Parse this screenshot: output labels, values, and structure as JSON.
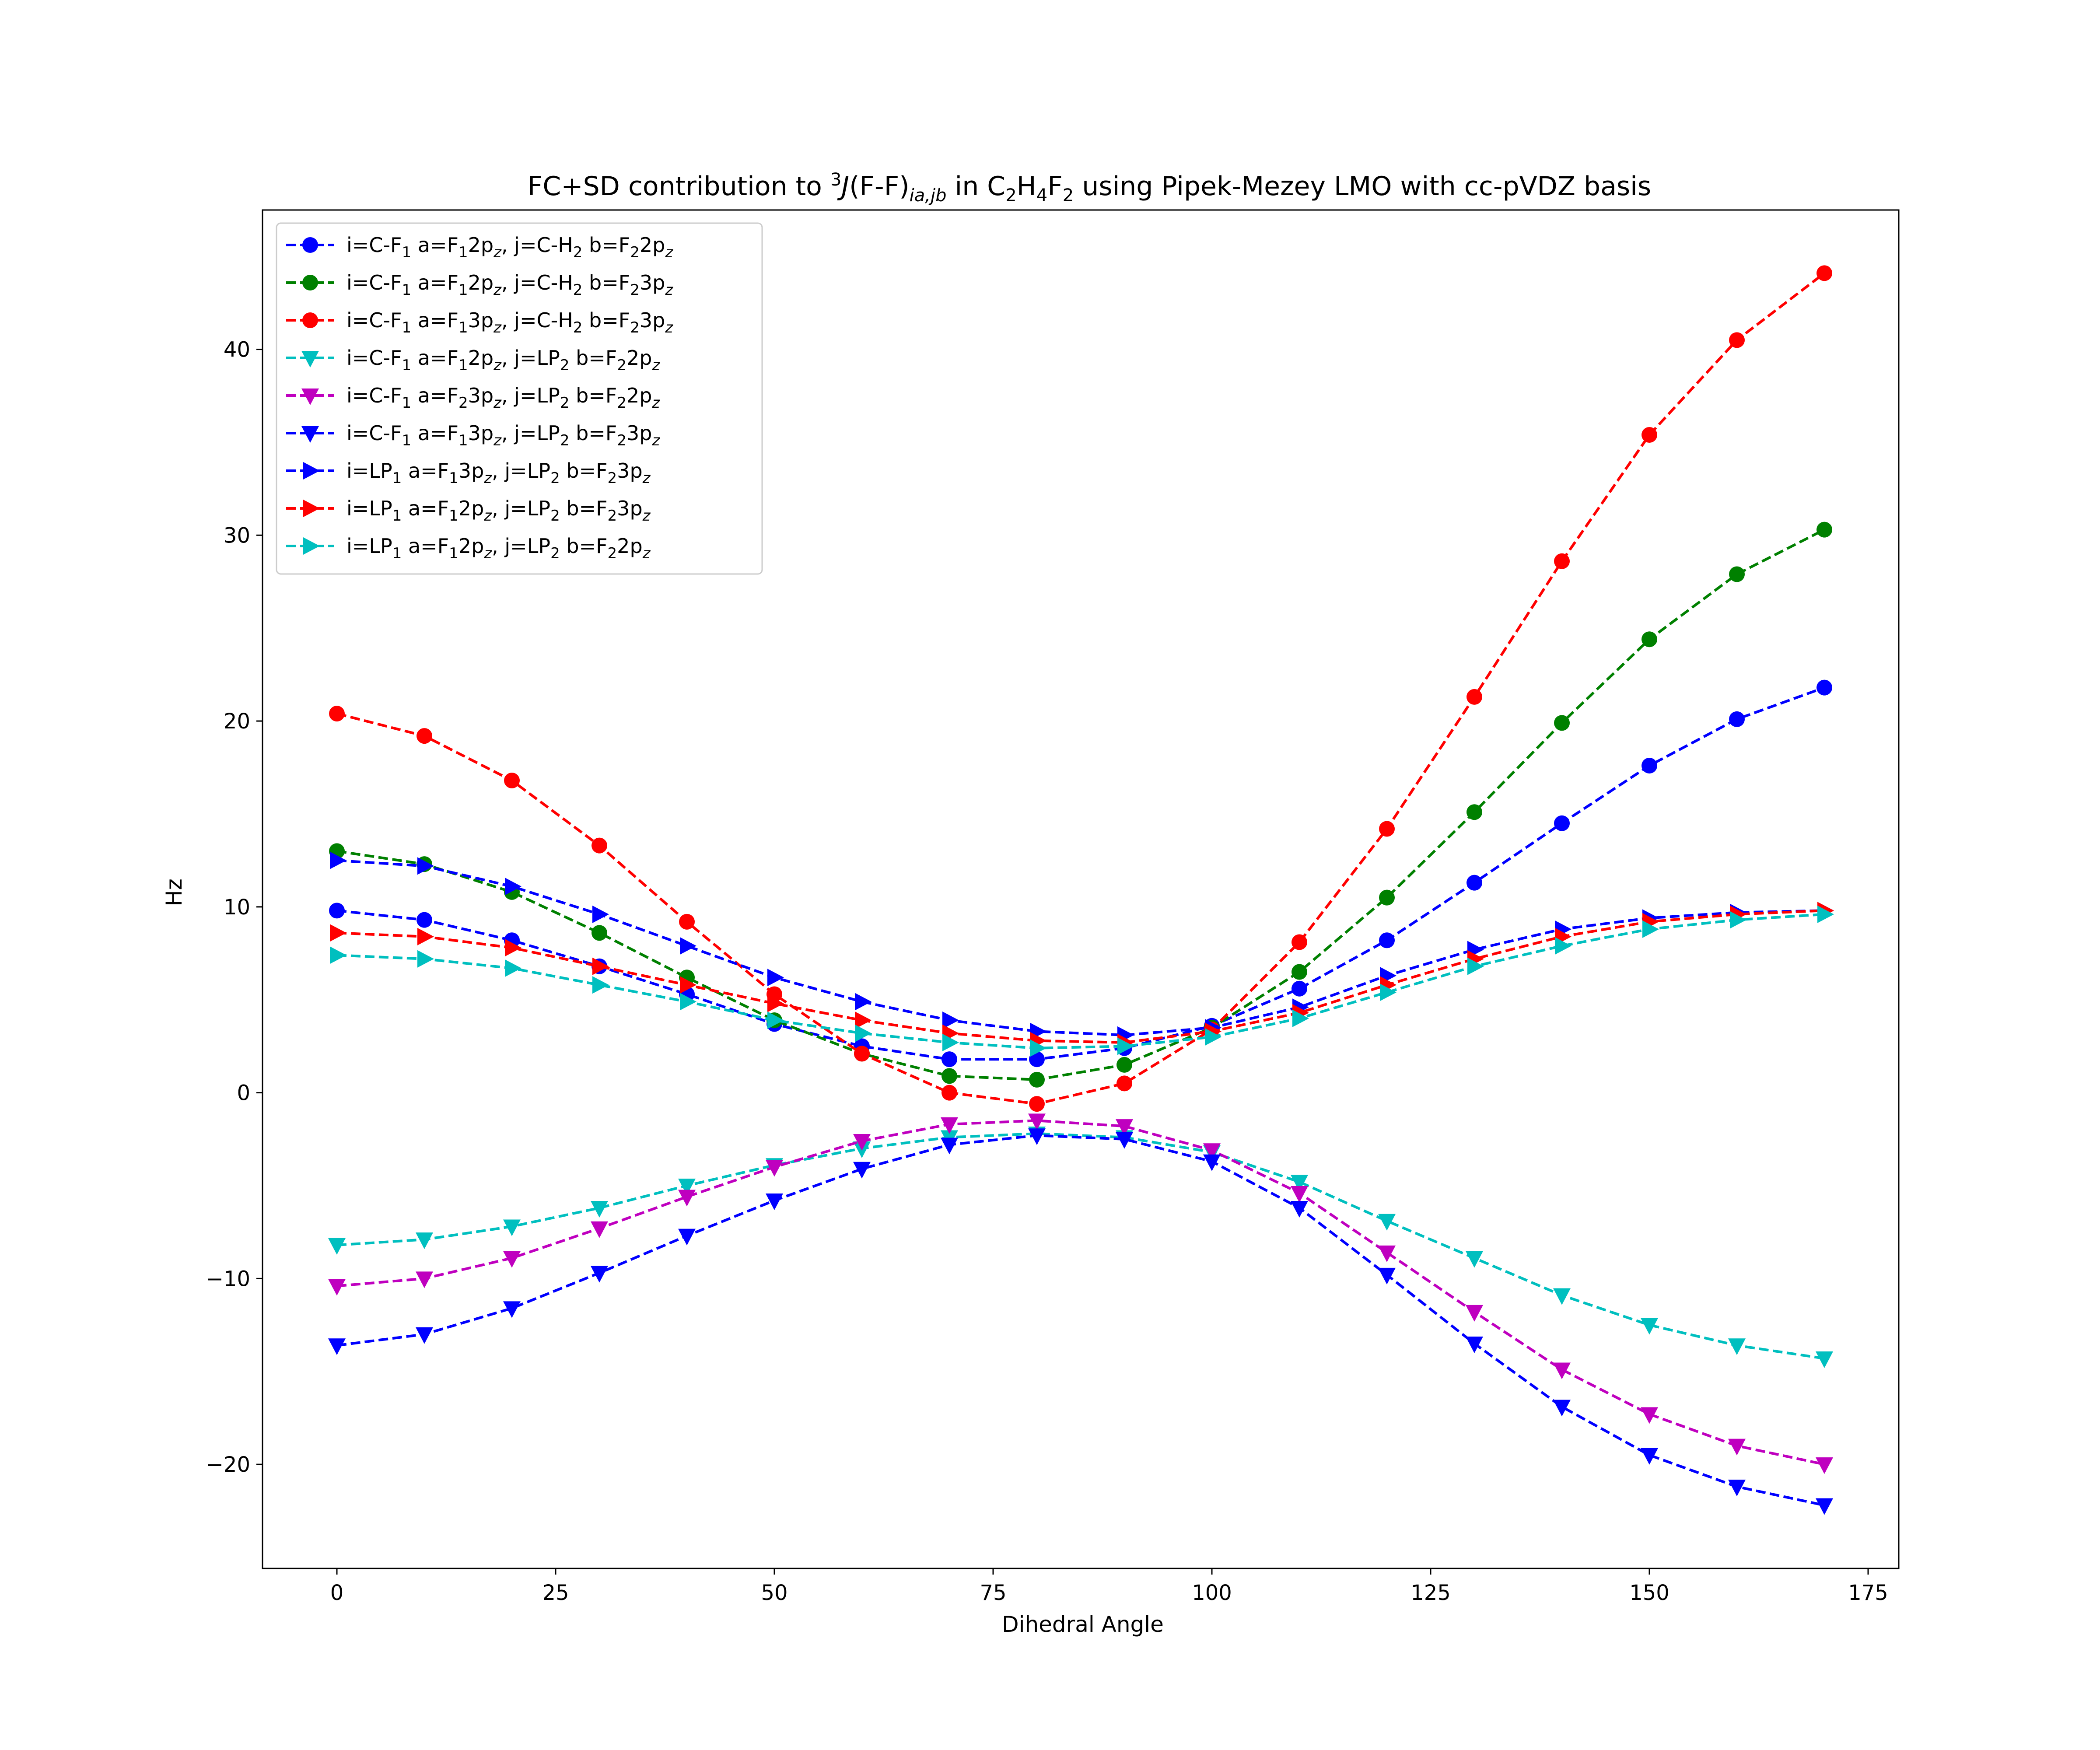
{
  "chart_data": {
    "type": "line",
    "title": {
      "pre": "FC+SD contribution to ",
      "sup3": "3",
      "J": "J",
      "ff": "(F-F)",
      "iajb": "ia,jb",
      "in": " in C",
      "s1": "2",
      "h": "H",
      "s2": "4",
      "f": "F",
      "s3": "2",
      "rest": " using Pipek-Mezey LMO with cc-pVDZ basis"
    },
    "xlabel": "Dihedral Angle",
    "ylabel": "Hz",
    "xlim": [
      -8.5,
      178.5
    ],
    "ylim": [
      -25.6,
      47.5
    ],
    "xticks": [
      0,
      25,
      50,
      75,
      100,
      125,
      150,
      175
    ],
    "xtick_labels": [
      "0",
      "25",
      "50",
      "75",
      "100",
      "125",
      "150",
      "175"
    ],
    "yticks": [
      -20,
      -10,
      0,
      10,
      20,
      30,
      40
    ],
    "ytick_labels": [
      "−20",
      "−10",
      "0",
      "10",
      "20",
      "30",
      "40"
    ],
    "grid": false,
    "legend_position": "top-left",
    "x": [
      0,
      10,
      20,
      30,
      40,
      50,
      60,
      70,
      80,
      90,
      100,
      110,
      120,
      130,
      140,
      150,
      160,
      170
    ],
    "series": [
      {
        "name": "i=C-F1 a=F12pz, j=C-H2 b=F22pz",
        "label_parts": [
          [
            "t",
            "i=C-F"
          ],
          [
            "sub",
            "1"
          ],
          [
            "t",
            " a=F"
          ],
          [
            "sub",
            "1"
          ],
          [
            "t",
            "2p"
          ],
          [
            "subi",
            "z"
          ],
          [
            "t",
            ", j=C-H"
          ],
          [
            "sub",
            "2"
          ],
          [
            "t",
            " b=F"
          ],
          [
            "sub",
            "2"
          ],
          [
            "t",
            "2p"
          ],
          [
            "subi",
            "z"
          ]
        ],
        "color": "#0000ff",
        "marker": "circle",
        "values": [
          9.8,
          9.3,
          8.2,
          6.8,
          5.3,
          3.7,
          2.5,
          1.8,
          1.8,
          2.4,
          3.6,
          5.6,
          8.2,
          11.3,
          14.5,
          17.6,
          20.1,
          21.8
        ]
      },
      {
        "name": "i=C-F1 a=F12pz, j=C-H2 b=F23pz",
        "label_parts": [
          [
            "t",
            "i=C-F"
          ],
          [
            "sub",
            "1"
          ],
          [
            "t",
            " a=F"
          ],
          [
            "sub",
            "1"
          ],
          [
            "t",
            "2p"
          ],
          [
            "subi",
            "z"
          ],
          [
            "t",
            ", j=C-H"
          ],
          [
            "sub",
            "2"
          ],
          [
            "t",
            " b=F"
          ],
          [
            "sub",
            "2"
          ],
          [
            "t",
            "3p"
          ],
          [
            "subi",
            "z"
          ]
        ],
        "color": "#008000",
        "marker": "circle",
        "values": [
          13.0,
          12.3,
          10.8,
          8.6,
          6.2,
          3.9,
          2.1,
          0.9,
          0.7,
          1.5,
          3.5,
          6.5,
          10.5,
          15.1,
          19.9,
          24.4,
          27.9,
          30.3
        ]
      },
      {
        "name": "i=C-F1 a=F13pz, j=C-H2 b=F23pz",
        "label_parts": [
          [
            "t",
            "i=C-F"
          ],
          [
            "sub",
            "1"
          ],
          [
            "t",
            " a=F"
          ],
          [
            "sub",
            "1"
          ],
          [
            "t",
            "3p"
          ],
          [
            "subi",
            "z"
          ],
          [
            "t",
            ", j=C-H"
          ],
          [
            "sub",
            "2"
          ],
          [
            "t",
            " b=F"
          ],
          [
            "sub",
            "2"
          ],
          [
            "t",
            "3p"
          ],
          [
            "subi",
            "z"
          ]
        ],
        "color": "#ff0000",
        "marker": "circle",
        "values": [
          20.4,
          19.2,
          16.8,
          13.3,
          9.2,
          5.3,
          2.1,
          0.0,
          -0.6,
          0.5,
          3.4,
          8.1,
          14.2,
          21.3,
          28.6,
          35.4,
          40.5,
          44.1
        ]
      },
      {
        "name": "i=C-F1 a=F12pz, j=LP2 b=F22pz",
        "label_parts": [
          [
            "t",
            "i=C-F"
          ],
          [
            "sub",
            "1"
          ],
          [
            "t",
            " a=F"
          ],
          [
            "sub",
            "1"
          ],
          [
            "t",
            "2p"
          ],
          [
            "subi",
            "z"
          ],
          [
            "t",
            ", j=LP"
          ],
          [
            "sub",
            "2"
          ],
          [
            "t",
            " b=F"
          ],
          [
            "sub",
            "2"
          ],
          [
            "t",
            "2p"
          ],
          [
            "subi",
            "z"
          ]
        ],
        "color": "#00bfbf",
        "marker": "triangle-down",
        "values": [
          -8.2,
          -7.9,
          -7.2,
          -6.2,
          -5.0,
          -3.9,
          -3.0,
          -2.4,
          -2.2,
          -2.4,
          -3.2,
          -4.8,
          -6.9,
          -8.9,
          -10.9,
          -12.5,
          -13.6,
          -14.3
        ]
      },
      {
        "name": "i=C-F1 a=F23pz, j=LP2 b=F22pz",
        "label_parts": [
          [
            "t",
            "i=C-F"
          ],
          [
            "sub",
            "1"
          ],
          [
            "t",
            " a=F"
          ],
          [
            "sub",
            "2"
          ],
          [
            "t",
            "3p"
          ],
          [
            "subi",
            "z"
          ],
          [
            "t",
            ", j=LP"
          ],
          [
            "sub",
            "2"
          ],
          [
            "t",
            " b=F"
          ],
          [
            "sub",
            "2"
          ],
          [
            "t",
            "2p"
          ],
          [
            "subi",
            "z"
          ]
        ],
        "color": "#bf00bf",
        "marker": "triangle-down",
        "values": [
          -10.4,
          -10.0,
          -8.9,
          -7.3,
          -5.6,
          -4.0,
          -2.6,
          -1.7,
          -1.5,
          -1.8,
          -3.1,
          -5.4,
          -8.6,
          -11.8,
          -14.9,
          -17.3,
          -19.0,
          -20.0
        ]
      },
      {
        "name": "i=C-F1 a=F13pz, j=LP2 b=F23pz",
        "label_parts": [
          [
            "t",
            "i=C-F"
          ],
          [
            "sub",
            "1"
          ],
          [
            "t",
            " a=F"
          ],
          [
            "sub",
            "1"
          ],
          [
            "t",
            "3p"
          ],
          [
            "subi",
            "z"
          ],
          [
            "t",
            ", j=LP"
          ],
          [
            "sub",
            "2"
          ],
          [
            "t",
            " b=F"
          ],
          [
            "sub",
            "2"
          ],
          [
            "t",
            "3p"
          ],
          [
            "subi",
            "z"
          ]
        ],
        "color": "#0000ff",
        "marker": "triangle-down",
        "values": [
          -13.6,
          -13.0,
          -11.6,
          -9.7,
          -7.7,
          -5.8,
          -4.1,
          -2.8,
          -2.3,
          -2.5,
          -3.7,
          -6.2,
          -9.8,
          -13.5,
          -16.9,
          -19.5,
          -21.2,
          -22.2
        ]
      },
      {
        "name": "i=LP1 a=F13pz, j=LP2 b=F23pz",
        "label_parts": [
          [
            "t",
            "i=LP"
          ],
          [
            "sub",
            "1"
          ],
          [
            "t",
            " a=F"
          ],
          [
            "sub",
            "1"
          ],
          [
            "t",
            "3p"
          ],
          [
            "subi",
            "z"
          ],
          [
            "t",
            ", j=LP"
          ],
          [
            "sub",
            "2"
          ],
          [
            "t",
            " b=F"
          ],
          [
            "sub",
            "2"
          ],
          [
            "t",
            "3p"
          ],
          [
            "subi",
            "z"
          ]
        ],
        "color": "#0000ff",
        "marker": "triangle-right",
        "values": [
          12.5,
          12.2,
          11.1,
          9.6,
          7.9,
          6.2,
          4.9,
          3.9,
          3.3,
          3.1,
          3.5,
          4.6,
          6.3,
          7.7,
          8.8,
          9.4,
          9.7,
          9.8
        ]
      },
      {
        "name": "i=LP1 a=F12pz, j=LP2 b=F23pz",
        "label_parts": [
          [
            "t",
            "i=LP"
          ],
          [
            "sub",
            "1"
          ],
          [
            "t",
            " a=F"
          ],
          [
            "sub",
            "1"
          ],
          [
            "t",
            "2p"
          ],
          [
            "subi",
            "z"
          ],
          [
            "t",
            ", j=LP"
          ],
          [
            "sub",
            "2"
          ],
          [
            "t",
            " b=F"
          ],
          [
            "sub",
            "2"
          ],
          [
            "t",
            "3p"
          ],
          [
            "subi",
            "z"
          ]
        ],
        "color": "#ff0000",
        "marker": "triangle-right",
        "values": [
          8.6,
          8.4,
          7.8,
          6.8,
          5.8,
          4.8,
          3.9,
          3.2,
          2.8,
          2.7,
          3.3,
          4.3,
          5.8,
          7.2,
          8.4,
          9.2,
          9.6,
          9.8
        ]
      },
      {
        "name": "i=LP1 a=F12pz, j=LP2 b=F22pz",
        "label_parts": [
          [
            "t",
            "i=LP"
          ],
          [
            "sub",
            "1"
          ],
          [
            "t",
            " a=F"
          ],
          [
            "sub",
            "1"
          ],
          [
            "t",
            "2p"
          ],
          [
            "subi",
            "z"
          ],
          [
            "t",
            ", j=LP"
          ],
          [
            "sub",
            "2"
          ],
          [
            "t",
            " b=F"
          ],
          [
            "sub",
            "2"
          ],
          [
            "t",
            "2p"
          ],
          [
            "subi",
            "z"
          ]
        ],
        "color": "#00bfbf",
        "marker": "triangle-right",
        "values": [
          7.4,
          7.2,
          6.7,
          5.8,
          4.9,
          3.9,
          3.2,
          2.7,
          2.4,
          2.5,
          3.0,
          4.0,
          5.4,
          6.8,
          7.9,
          8.8,
          9.3,
          9.6
        ]
      }
    ]
  }
}
